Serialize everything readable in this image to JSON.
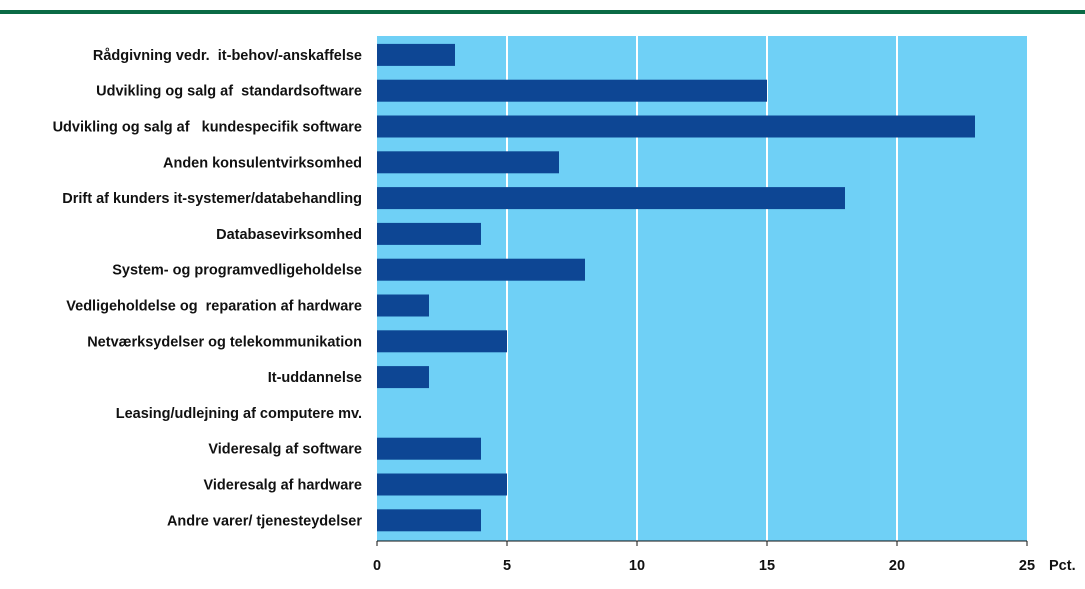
{
  "colors": {
    "top_rule": "#0a6b45",
    "plot_background": "#6fd0f6",
    "bar": "#0d4694",
    "gridline": "#ffffff",
    "axis_line": "#111111",
    "text": "#111111"
  },
  "chart_data": {
    "type": "bar",
    "orientation": "horizontal",
    "title": "",
    "xlabel": "Pct.",
    "ylabel": "",
    "xlim": [
      0,
      25
    ],
    "x_ticks": [
      "0",
      "5",
      "10",
      "15",
      "20",
      "25"
    ],
    "grid": "vertical gridlines",
    "categories": [
      "Rådgivning vedr.  it-behov/-anskaffelse",
      "Udvikling og salg af  standardsoftware",
      "Udvikling og salg af   kundespecifik software",
      "Anden konsulentvirksomhed",
      "Drift af kunders it-systemer/databehandling",
      "Databasevirksomhed",
      "System- og programvedligeholdelse",
      "Vedligeholdelse og  reparation af hardware",
      "Netværksydelser og telekommunikation",
      "It-uddannelse",
      "Leasing/udlejning af computere mv.",
      "Videresalg af software",
      "Videresalg af hardware",
      "Andre varer/ tjenesteydelser"
    ],
    "values": [
      3,
      15,
      23,
      7,
      18,
      4,
      8,
      2,
      5,
      2,
      0,
      4,
      5,
      4
    ]
  }
}
